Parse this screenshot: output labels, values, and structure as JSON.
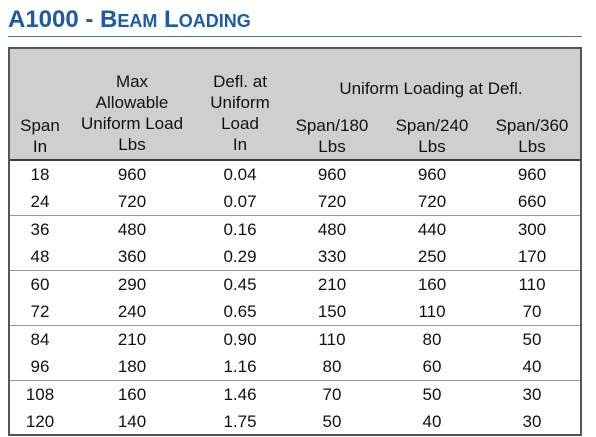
{
  "title": {
    "model": "A1000 - B",
    "part1_small": "EAM",
    "part2_big": " L",
    "part2_small": "OADING"
  },
  "table": {
    "headers": {
      "span": [
        "Span",
        "In"
      ],
      "max_load": [
        "Max",
        "Allowable",
        "Uniform Load",
        "Lbs"
      ],
      "defl": [
        "Defl. at",
        "Uniform",
        "Load",
        "In"
      ],
      "group": "Uniform Loading at Defl.",
      "span180": [
        "Span/180",
        "Lbs"
      ],
      "span240": [
        "Span/240",
        "Lbs"
      ],
      "span360": [
        "Span/360",
        "Lbs"
      ]
    },
    "rows": [
      [
        "18",
        "960",
        "0.04",
        "960",
        "960",
        "960"
      ],
      [
        "24",
        "720",
        "0.07",
        "720",
        "720",
        "660"
      ],
      [
        "36",
        "480",
        "0.16",
        "480",
        "440",
        "300"
      ],
      [
        "48",
        "360",
        "0.29",
        "330",
        "250",
        "170"
      ],
      [
        "60",
        "290",
        "0.45",
        "210",
        "160",
        "110"
      ],
      [
        "72",
        "240",
        "0.65",
        "150",
        "110",
        "70"
      ],
      [
        "84",
        "210",
        "0.90",
        "110",
        "80",
        "50"
      ],
      [
        "96",
        "180",
        "1.16",
        "80",
        "60",
        "40"
      ],
      [
        "108",
        "160",
        "1.46",
        "70",
        "50",
        "30"
      ],
      [
        "120",
        "140",
        "1.75",
        "50",
        "40",
        "30"
      ]
    ]
  },
  "colors": {
    "title": "#1d5aa8",
    "header_bg": "#cfcfcf",
    "border": "#555555"
  }
}
